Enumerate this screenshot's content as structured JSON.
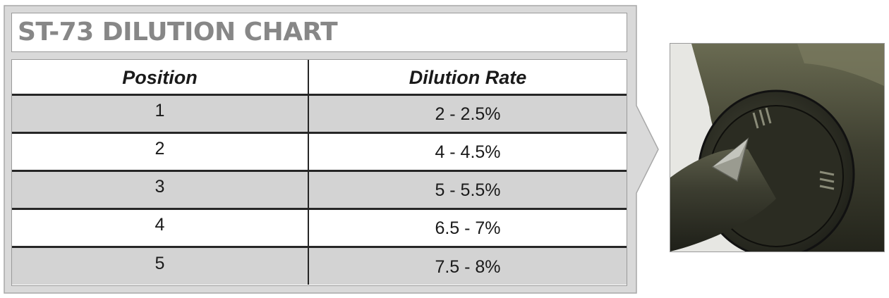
{
  "chart": {
    "title": "ST-73 DILUTION CHART",
    "headers": {
      "position": "Position",
      "dilution_rate": "Dilution Rate"
    },
    "rows": [
      {
        "position": "1",
        "dilution_rate": "2 - 2.5%"
      },
      {
        "position": "2",
        "dilution_rate": "4 - 4.5%"
      },
      {
        "position": "3",
        "dilution_rate": "5 - 5.5%"
      },
      {
        "position": "4",
        "dilution_rate": "6.5 - 7%"
      },
      {
        "position": "5",
        "dilution_rate": "7.5 - 8%"
      }
    ]
  },
  "colors": {
    "panel_gray": "#d9d9d9",
    "title_gray": "#878787",
    "row_shade": "#d3d3d3",
    "rule_dark": "#262626"
  },
  "photo": {
    "icon": "dilution-dial-photo"
  }
}
